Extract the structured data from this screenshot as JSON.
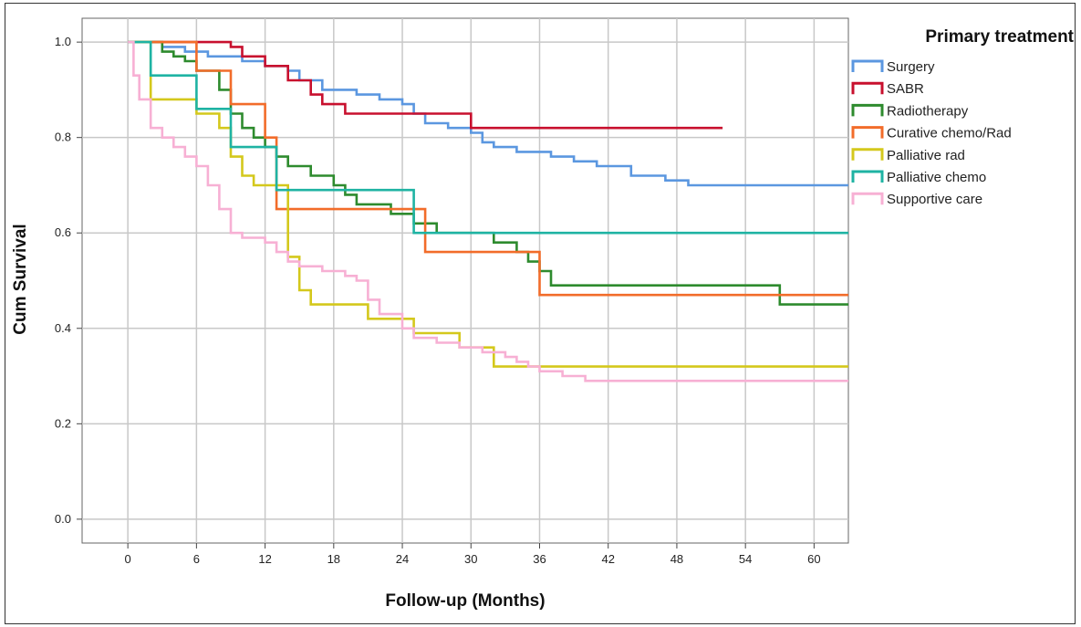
{
  "chart_data": {
    "type": "line",
    "step": true,
    "xlabel": "Follow-up (Months)",
    "ylabel": "Cum Survival",
    "xlim": [
      -4,
      63
    ],
    "ylim": [
      -0.05,
      1.05
    ],
    "xticks": [
      0,
      6,
      12,
      18,
      24,
      30,
      36,
      42,
      48,
      54,
      60
    ],
    "yticks": [
      0.0,
      0.2,
      0.4,
      0.6,
      0.8,
      1.0
    ],
    "ytick_labels": [
      "0.0",
      "0.2",
      "0.4",
      "0.6",
      "0.8",
      "1.0"
    ],
    "grid": true,
    "legend": {
      "title": "Primary treatment",
      "placement": "right"
    },
    "series": [
      {
        "name": "Surgery",
        "color": "#5b97e0",
        "x": [
          0,
          3,
          5,
          7,
          10,
          12,
          14,
          15,
          17,
          20,
          22,
          24,
          25,
          26,
          28,
          30,
          31,
          32,
          34,
          37,
          39,
          41,
          44,
          47,
          49,
          63
        ],
        "y": [
          1.0,
          0.99,
          0.98,
          0.97,
          0.96,
          0.95,
          0.94,
          0.92,
          0.9,
          0.89,
          0.88,
          0.87,
          0.85,
          0.83,
          0.82,
          0.81,
          0.79,
          0.78,
          0.77,
          0.76,
          0.75,
          0.74,
          0.72,
          0.71,
          0.7,
          0.7
        ]
      },
      {
        "name": "SABR",
        "color": "#c8102e",
        "x": [
          0,
          9,
          10,
          12,
          14,
          16,
          17,
          19,
          30,
          52
        ],
        "y": [
          1.0,
          0.99,
          0.97,
          0.95,
          0.92,
          0.89,
          0.87,
          0.85,
          0.82,
          0.82
        ]
      },
      {
        "name": "Radiotherapy",
        "color": "#2e8b2e",
        "x": [
          0,
          3,
          4,
          5,
          6,
          8,
          9,
          10,
          11,
          12,
          13,
          14,
          16,
          18,
          19,
          20,
          23,
          25,
          27,
          32,
          34,
          35,
          36,
          37,
          57,
          63
        ],
        "y": [
          1.0,
          0.98,
          0.97,
          0.96,
          0.94,
          0.9,
          0.85,
          0.82,
          0.8,
          0.78,
          0.76,
          0.74,
          0.72,
          0.7,
          0.68,
          0.66,
          0.64,
          0.62,
          0.6,
          0.58,
          0.56,
          0.54,
          0.52,
          0.49,
          0.45,
          0.45
        ]
      },
      {
        "name": "Curative chemo/Rad",
        "color": "#f26c2a",
        "x": [
          0,
          6,
          9,
          12,
          13,
          26,
          36,
          63
        ],
        "y": [
          1.0,
          0.94,
          0.87,
          0.8,
          0.65,
          0.56,
          0.47,
          0.47
        ]
      },
      {
        "name": "Palliative rad",
        "color": "#d4c81c",
        "x": [
          0,
          2,
          6,
          8,
          9,
          10,
          11,
          14,
          15,
          16,
          21,
          25,
          29,
          32,
          63
        ],
        "y": [
          1.0,
          0.88,
          0.85,
          0.82,
          0.76,
          0.72,
          0.7,
          0.55,
          0.48,
          0.45,
          0.42,
          0.39,
          0.36,
          0.32,
          0.32
        ]
      },
      {
        "name": "Palliative chemo",
        "color": "#1fb3a3",
        "x": [
          0,
          2,
          6,
          9,
          13,
          25,
          63
        ],
        "y": [
          1.0,
          0.93,
          0.86,
          0.78,
          0.69,
          0.6,
          0.6
        ]
      },
      {
        "name": "Supportive care",
        "color": "#f7b0d4",
        "x": [
          0,
          0.5,
          1,
          2,
          3,
          4,
          5,
          6,
          7,
          8,
          9,
          10,
          12,
          13,
          14,
          15,
          17,
          19,
          20,
          21,
          22,
          24,
          25,
          27,
          29,
          31,
          33,
          34,
          35,
          36,
          38,
          40,
          63
        ],
        "y": [
          1.0,
          0.93,
          0.88,
          0.82,
          0.8,
          0.78,
          0.76,
          0.74,
          0.7,
          0.65,
          0.6,
          0.59,
          0.58,
          0.56,
          0.54,
          0.53,
          0.52,
          0.51,
          0.5,
          0.46,
          0.43,
          0.4,
          0.38,
          0.37,
          0.36,
          0.35,
          0.34,
          0.33,
          0.32,
          0.31,
          0.3,
          0.29,
          0.29
        ]
      }
    ]
  }
}
